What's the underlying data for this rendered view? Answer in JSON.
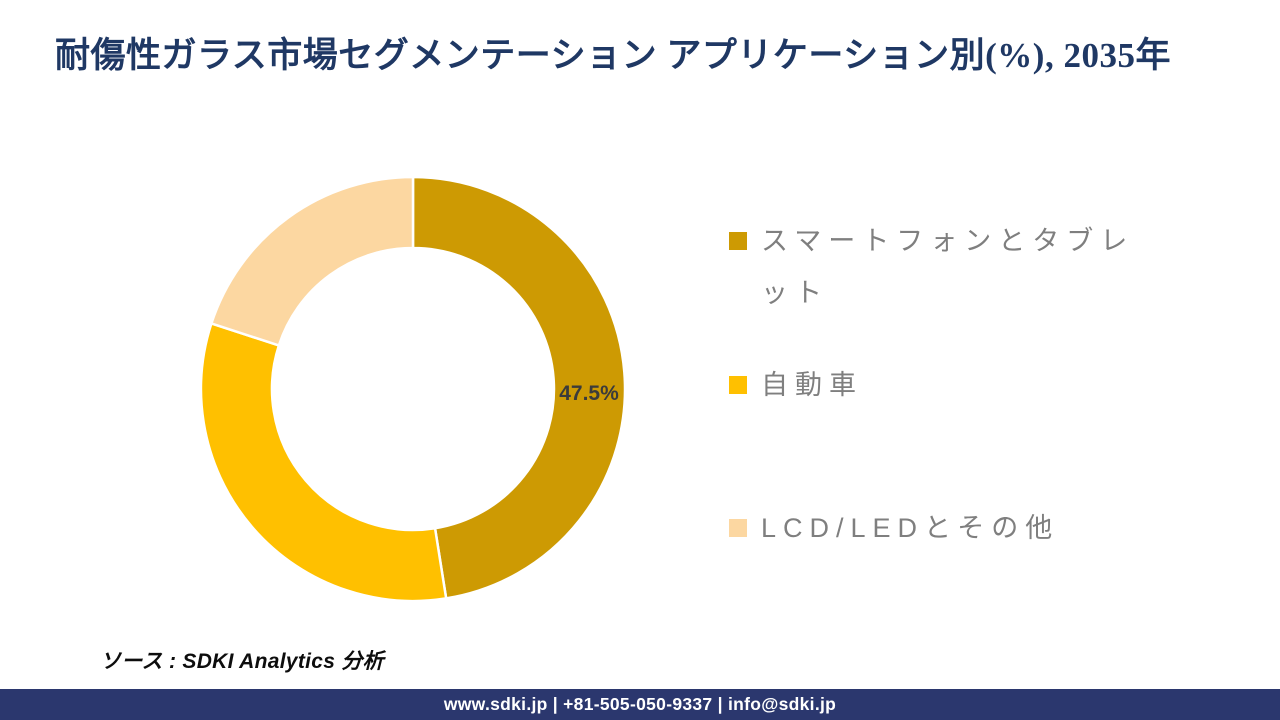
{
  "title": "耐傷性ガラス市場セグメンテーション アプリケーション別(%), 2035年",
  "source_note": "ソース : SDKI Analytics 分析",
  "footer": {
    "text": "www.sdki.jp | +81-505-050-9337 | info@sdki.jp",
    "bg_color": "#2B376E",
    "text_color": "#FFFFFF"
  },
  "colors": {
    "title": "#1F3864",
    "legend_text": "#7F7F7F",
    "data_label": "#3B3B3B",
    "background": "#FFFFFF"
  },
  "chart_data": {
    "type": "pie",
    "subtype": "donut",
    "title": "耐傷性ガラス市場セグメンテーション アプリケーション別(%), 2035年",
    "unit": "%",
    "year": "2035年",
    "start_angle_deg": 0,
    "direction": "clockwise",
    "inner_radius_ratio": 0.665,
    "legend_position": "right",
    "segment_gap_color": "#FFFFFF",
    "segments": [
      {
        "label": "スマートフォンとタブレット",
        "value": 47.5,
        "color": "#CD9A03",
        "data_label": "47.5%",
        "value_is_labeled": true
      },
      {
        "label": "自動車",
        "value": 32.5,
        "color": "#FFC000",
        "data_label": "",
        "value_is_labeled": false,
        "value_estimated": true
      },
      {
        "label": "LCD/LEDとその他",
        "value": 20.0,
        "color": "#FCD7A1",
        "data_label": "",
        "value_is_labeled": false,
        "value_estimated": true
      }
    ]
  }
}
